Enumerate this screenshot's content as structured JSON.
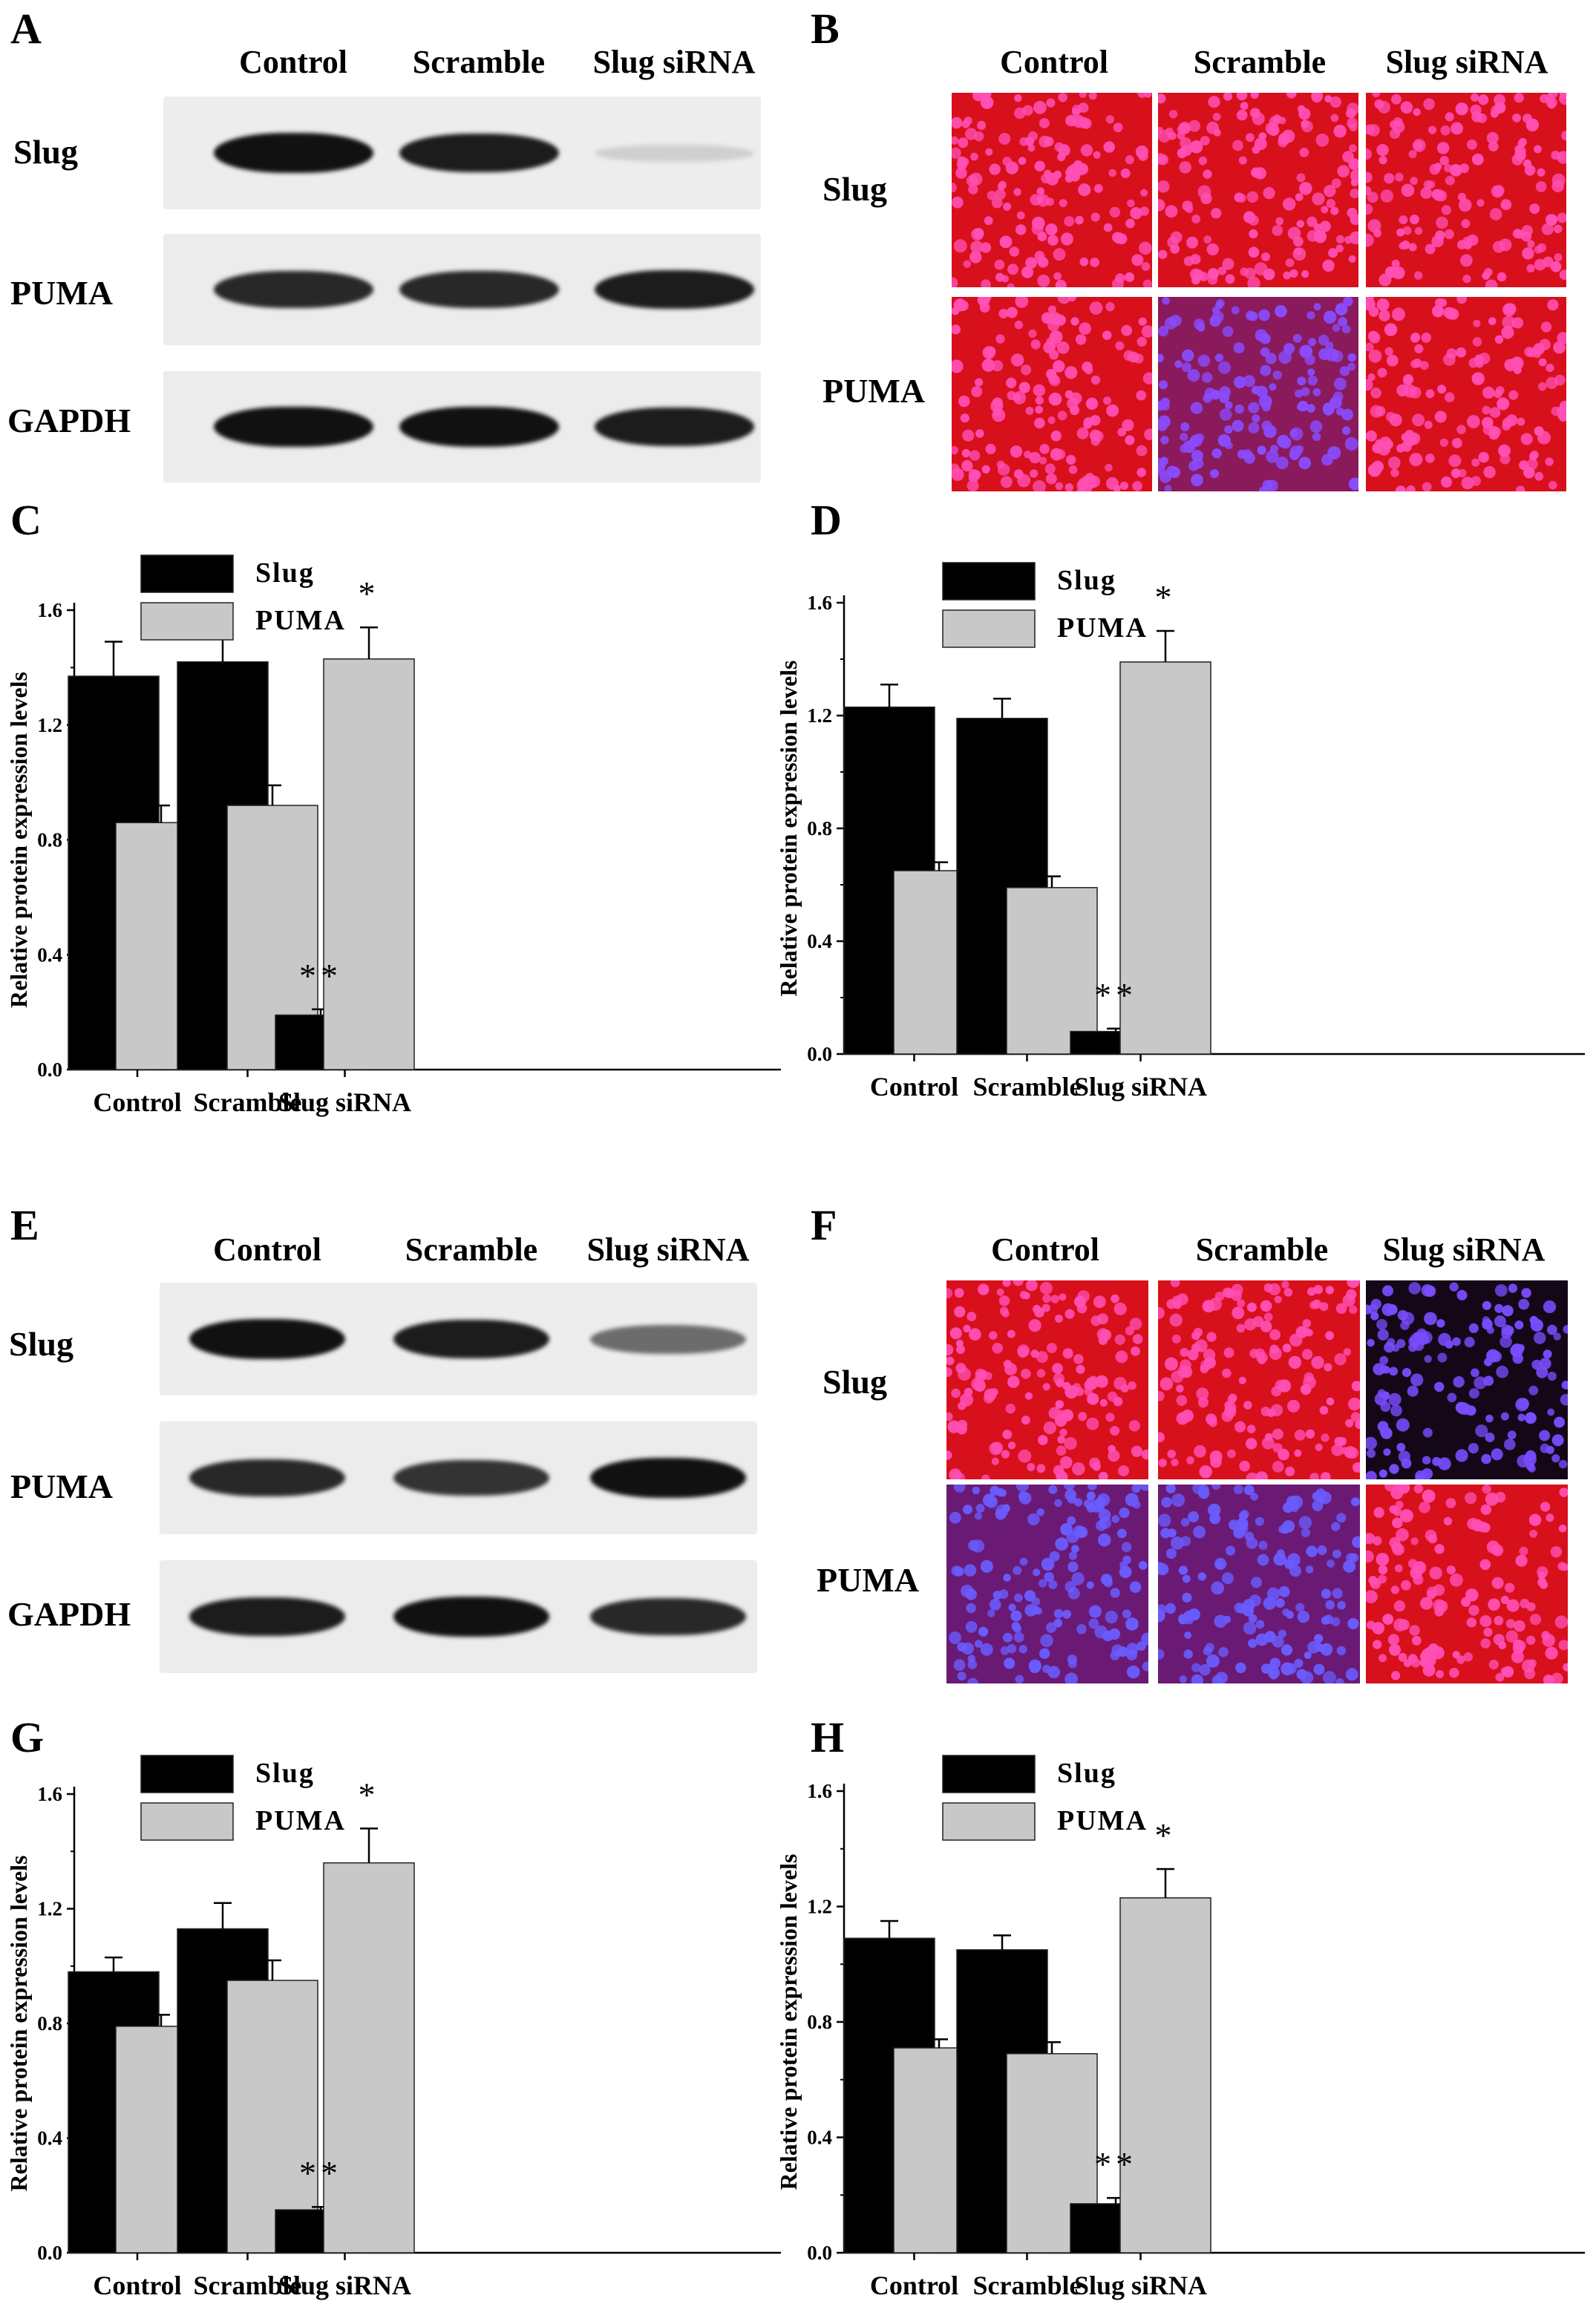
{
  "letters": {
    "A": "A",
    "B": "B",
    "C": "C",
    "D": "D",
    "E": "E",
    "F": "F",
    "G": "G",
    "H": "H"
  },
  "blots": [
    {
      "columns": [
        "Control",
        "Scramble",
        "Slug siRNA"
      ],
      "rows": [
        "Slug",
        "PUMA",
        "GAPDH"
      ],
      "band_intensity": [
        [
          0.95,
          0.9,
          0.12
        ],
        [
          0.85,
          0.85,
          0.9
        ],
        [
          0.95,
          0.95,
          0.9
        ]
      ]
    },
    {
      "columns": [
        "Control",
        "Scramble",
        "Slug siRNA"
      ],
      "rows": [
        "Slug",
        "PUMA",
        "GAPDH"
      ],
      "band_intensity": [
        [
          0.95,
          0.9,
          0.55
        ],
        [
          0.85,
          0.8,
          0.95
        ],
        [
          0.9,
          0.95,
          0.85
        ]
      ]
    }
  ],
  "fluorescence": [
    {
      "columns": [
        "Control",
        "Scramble",
        "Slug siRNA"
      ],
      "rows": [
        "Slug",
        "PUMA"
      ],
      "tone": [
        [
          "red",
          "red",
          "red"
        ],
        [
          "red",
          "purple",
          "red"
        ]
      ]
    },
    {
      "columns": [
        "Control",
        "Scramble",
        "Slug siRNA"
      ],
      "rows": [
        "Slug",
        "PUMA"
      ],
      "tone": [
        [
          "red",
          "red",
          "dark"
        ],
        [
          "blue",
          "blue",
          "red"
        ]
      ]
    }
  ],
  "colors": {
    "slug": "#000000",
    "puma": "#c8c8c8",
    "red": "#e0101e",
    "purple": "#8a1a60",
    "dark": "#1a0a28",
    "blue": "#5a2a9a"
  },
  "chart_data": [
    {
      "panel": "C",
      "type": "bar",
      "categories": [
        "Control",
        "Scramble",
        "Slug siRNA"
      ],
      "series": [
        {
          "name": "Slug",
          "values": [
            1.37,
            1.42,
            0.19
          ],
          "errors": [
            0.12,
            0.09,
            0.02
          ]
        },
        {
          "name": "PUMA",
          "values": [
            0.86,
            0.92,
            1.43
          ],
          "errors": [
            0.06,
            0.07,
            0.11
          ]
        }
      ],
      "annotations": [
        {
          "category": "Slug siRNA",
          "series": "Slug",
          "text": "**"
        },
        {
          "category": "Slug siRNA",
          "series": "PUMA",
          "text": "*"
        }
      ],
      "ylabel": "Relative protein expression levels",
      "ylim": [
        0,
        1.6
      ],
      "yticks": [
        "0.0",
        "0.4",
        "0.8",
        "1.2",
        "1.6"
      ],
      "legend": "top-left"
    },
    {
      "panel": "D",
      "type": "bar",
      "categories": [
        "Control",
        "Scramble",
        "Slug siRNA"
      ],
      "series": [
        {
          "name": "Slug",
          "values": [
            1.23,
            1.19,
            0.08
          ],
          "errors": [
            0.08,
            0.07,
            0.01
          ]
        },
        {
          "name": "PUMA",
          "values": [
            0.65,
            0.59,
            1.39
          ],
          "errors": [
            0.03,
            0.04,
            0.11
          ]
        }
      ],
      "annotations": [
        {
          "category": "Slug siRNA",
          "series": "Slug",
          "text": "**"
        },
        {
          "category": "Slug siRNA",
          "series": "PUMA",
          "text": "*"
        }
      ],
      "ylabel": "Relative protein expression levels",
      "ylim": [
        0,
        1.6
      ],
      "yticks": [
        "0.0",
        "0.4",
        "0.8",
        "1.2",
        "1.6"
      ],
      "legend": "top-left"
    },
    {
      "panel": "G",
      "type": "bar",
      "categories": [
        "Control",
        "Scramble",
        "Slug siRNA"
      ],
      "series": [
        {
          "name": "Slug",
          "values": [
            0.98,
            1.13,
            0.15
          ],
          "errors": [
            0.05,
            0.09,
            0.01
          ]
        },
        {
          "name": "PUMA",
          "values": [
            0.79,
            0.95,
            1.36
          ],
          "errors": [
            0.04,
            0.07,
            0.12
          ]
        }
      ],
      "annotations": [
        {
          "category": "Slug siRNA",
          "series": "Slug",
          "text": "**"
        },
        {
          "category": "Slug siRNA",
          "series": "PUMA",
          "text": "*"
        }
      ],
      "ylabel": "Relative protein expression levels",
      "ylim": [
        0,
        1.6
      ],
      "yticks": [
        "0.0",
        "0.4",
        "0.8",
        "1.2",
        "1.6"
      ],
      "legend": "top-left"
    },
    {
      "panel": "H",
      "type": "bar",
      "categories": [
        "Control",
        "Scramble",
        "Slug siRNA"
      ],
      "series": [
        {
          "name": "Slug",
          "values": [
            1.09,
            1.05,
            0.17
          ],
          "errors": [
            0.06,
            0.05,
            0.02
          ]
        },
        {
          "name": "PUMA",
          "values": [
            0.71,
            0.69,
            1.23
          ],
          "errors": [
            0.03,
            0.04,
            0.1
          ]
        }
      ],
      "annotations": [
        {
          "category": "Slug siRNA",
          "series": "Slug",
          "text": "**"
        },
        {
          "category": "Slug siRNA",
          "series": "PUMA",
          "text": "*"
        }
      ],
      "ylabel": "Relative protein expression levels",
      "ylim": [
        0,
        1.6
      ],
      "yticks": [
        "0.0",
        "0.4",
        "0.8",
        "1.2",
        "1.6"
      ],
      "legend": "top-left"
    }
  ]
}
